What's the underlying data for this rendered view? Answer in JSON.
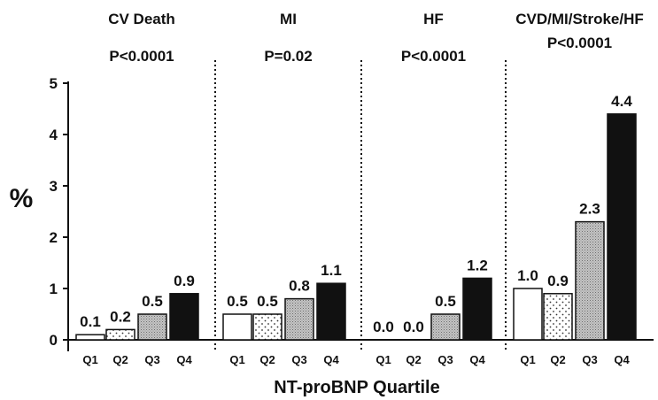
{
  "chart_data": {
    "type": "bar",
    "ylabel": "%",
    "xlabel": "NT-proBNP Quartile",
    "ylim": [
      0,
      5
    ],
    "yticks": [
      0,
      1,
      2,
      3,
      4,
      5
    ],
    "grid": false,
    "legend": "none",
    "bar_styles": [
      {
        "category": "Q1",
        "fill": "#ffffff",
        "pattern": "none"
      },
      {
        "category": "Q2",
        "fill": "#ffffff",
        "pattern": "dots"
      },
      {
        "category": "Q3",
        "fill": "#b8b8b8",
        "pattern": "fine-stipple"
      },
      {
        "category": "Q4",
        "fill": "#111111",
        "pattern": "none"
      }
    ],
    "panels": [
      {
        "title": "CV Death",
        "pvalue": "P<0.0001",
        "categories": [
          "Q1",
          "Q2",
          "Q3",
          "Q4"
        ],
        "values": [
          0.1,
          0.2,
          0.5,
          0.9
        ],
        "labels": [
          "0.1",
          "0.2",
          "0.5",
          "0.9"
        ]
      },
      {
        "title": "MI",
        "pvalue": "P=0.02",
        "categories": [
          "Q1",
          "Q2",
          "Q3",
          "Q4"
        ],
        "values": [
          0.5,
          0.5,
          0.8,
          1.1
        ],
        "labels": [
          "0.5",
          "0.5",
          "0.8",
          "1.1"
        ]
      },
      {
        "title": "HF",
        "pvalue": "P<0.0001",
        "categories": [
          "Q1",
          "Q2",
          "Q3",
          "Q4"
        ],
        "values": [
          0.0,
          0.0,
          0.5,
          1.2
        ],
        "labels": [
          "0.0",
          "0.0",
          "0.5",
          "1.2"
        ]
      },
      {
        "title": "CVD/MI/Stroke/HF",
        "pvalue": "P<0.0001",
        "categories": [
          "Q1",
          "Q2",
          "Q3",
          "Q4"
        ],
        "values": [
          1.0,
          0.9,
          2.3,
          4.4
        ],
        "labels": [
          "1.0",
          "0.9",
          "2.3",
          "4.4"
        ]
      }
    ]
  }
}
